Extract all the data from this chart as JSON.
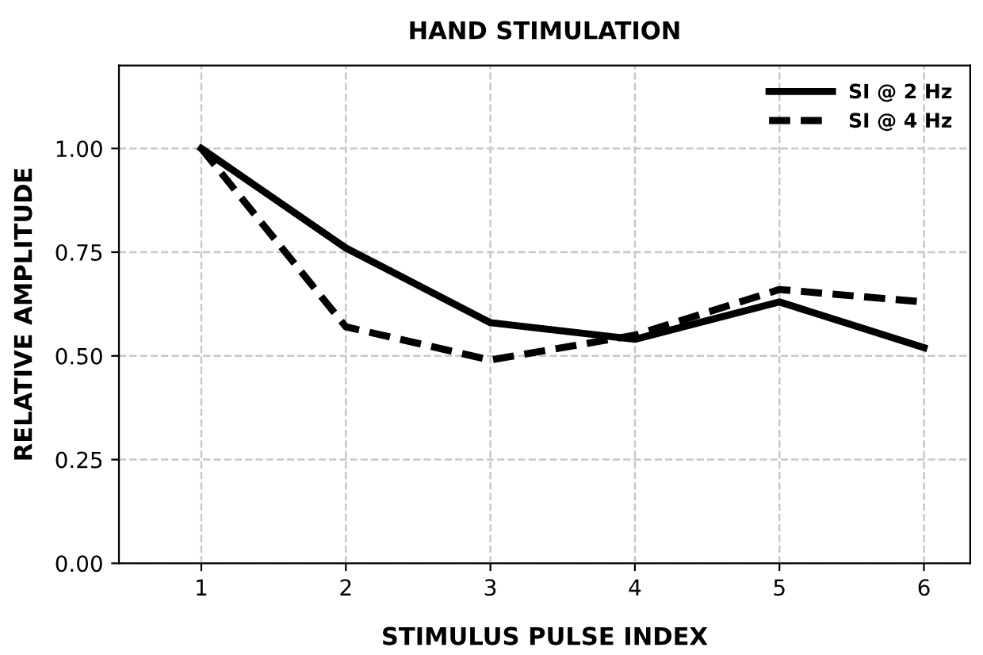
{
  "chart_data": {
    "type": "line",
    "title": "HAND STIMULATION",
    "xlabel": "STIMULUS PULSE INDEX",
    "ylabel": "RELATIVE AMPLITUDE",
    "x": [
      1,
      2,
      3,
      4,
      5,
      6
    ],
    "series": [
      {
        "name": "SI @ 2 Hz",
        "color": "#000000",
        "line_style": "solid",
        "values": [
          1.0,
          0.76,
          0.58,
          0.54,
          0.63,
          0.52
        ]
      },
      {
        "name": "SI @ 4 Hz",
        "color": "#000000",
        "line_style": "dashed",
        "values": [
          1.0,
          0.57,
          0.49,
          0.55,
          0.66,
          0.63
        ]
      }
    ],
    "xlim": [
      0.43,
      6.32
    ],
    "xticks": [
      1,
      2,
      3,
      4,
      5,
      6
    ],
    "ylim": [
      0,
      1.2
    ],
    "yticks": [
      {
        "value": 0,
        "label": "0.00"
      },
      {
        "value": 0.25,
        "label": "0.25"
      },
      {
        "value": 0.5,
        "label": "0.50"
      },
      {
        "value": 0.75,
        "label": "0.75"
      },
      {
        "value": 1,
        "label": "1.00"
      }
    ],
    "grid": true,
    "legend": "top right",
    "marker": "none"
  }
}
